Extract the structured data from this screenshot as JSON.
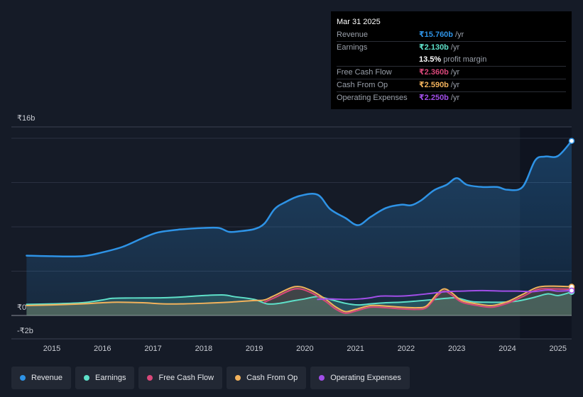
{
  "tooltip": {
    "date": "Mar 31 2025",
    "rows": [
      {
        "label": "Revenue",
        "value": "₹15.760b",
        "unit": "/yr",
        "color": "#2e93e6"
      },
      {
        "label": "Earnings",
        "value": "₹2.130b",
        "unit": "/yr",
        "color": "#5ee0c9"
      },
      {
        "label": "",
        "value": "13.5%",
        "unit": "profit margin",
        "color": "#ffffff"
      },
      {
        "label": "Free Cash Flow",
        "value": "₹2.360b",
        "unit": "/yr",
        "color": "#d9487a"
      },
      {
        "label": "Cash From Op",
        "value": "₹2.590b",
        "unit": "/yr",
        "color": "#f2b25c"
      },
      {
        "label": "Operating Expenses",
        "value": "₹2.250b",
        "unit": "/yr",
        "color": "#a14ee8"
      }
    ]
  },
  "legend": [
    {
      "label": "Revenue",
      "color": "#2e93e6"
    },
    {
      "label": "Earnings",
      "color": "#5ee0c9"
    },
    {
      "label": "Free Cash Flow",
      "color": "#d9487a"
    },
    {
      "label": "Cash From Op",
      "color": "#f2b25c"
    },
    {
      "label": "Operating Expenses",
      "color": "#a14ee8"
    }
  ],
  "chart_data": {
    "type": "area",
    "y_unit": "₹b",
    "ylim": [
      -2,
      16
    ],
    "y_tick_labels": [
      {
        "value": 16,
        "label": "₹16b"
      },
      {
        "value": 0,
        "label": "₹0"
      },
      {
        "value": -2,
        "label": "-₹2b"
      }
    ],
    "x_tick_labels": [
      "2015",
      "2016",
      "2017",
      "2018",
      "2019",
      "2020",
      "2021",
      "2022",
      "2023",
      "2024",
      "2025"
    ],
    "x_ticks": [
      2015,
      2016,
      2017,
      2018,
      2019,
      2020,
      2021,
      2022,
      2023,
      2024,
      2025
    ],
    "xlim": [
      2014.2,
      2025.27
    ],
    "grid": true,
    "highlight_from": 2024.25,
    "series": [
      {
        "name": "Revenue",
        "color": "#2e93e6",
        "fill": true,
        "points": [
          [
            2014.5,
            5.4
          ],
          [
            2015.0,
            5.35
          ],
          [
            2015.6,
            5.35
          ],
          [
            2016.0,
            5.7
          ],
          [
            2016.4,
            6.2
          ],
          [
            2016.8,
            7.0
          ],
          [
            2017.1,
            7.5
          ],
          [
            2017.5,
            7.75
          ],
          [
            2018.0,
            7.9
          ],
          [
            2018.3,
            7.9
          ],
          [
            2018.5,
            7.55
          ],
          [
            2018.7,
            7.6
          ],
          [
            2019.0,
            7.8
          ],
          [
            2019.2,
            8.3
          ],
          [
            2019.4,
            9.6
          ],
          [
            2019.6,
            10.2
          ],
          [
            2019.9,
            10.8
          ],
          [
            2020.25,
            10.9
          ],
          [
            2020.5,
            9.6
          ],
          [
            2020.8,
            8.8
          ],
          [
            2021.05,
            8.15
          ],
          [
            2021.3,
            8.9
          ],
          [
            2021.6,
            9.7
          ],
          [
            2021.9,
            10.0
          ],
          [
            2022.1,
            9.95
          ],
          [
            2022.3,
            10.4
          ],
          [
            2022.55,
            11.3
          ],
          [
            2022.8,
            11.8
          ],
          [
            2023.0,
            12.4
          ],
          [
            2023.2,
            11.8
          ],
          [
            2023.5,
            11.6
          ],
          [
            2023.8,
            11.6
          ],
          [
            2024.0,
            11.35
          ],
          [
            2024.3,
            11.6
          ],
          [
            2024.55,
            14.0
          ],
          [
            2024.75,
            14.35
          ],
          [
            2025.0,
            14.4
          ],
          [
            2025.27,
            15.76
          ]
        ]
      },
      {
        "name": "Earnings",
        "color": "#5ee0c9",
        "fill": true,
        "points": [
          [
            2014.5,
            1.0
          ],
          [
            2015.0,
            1.05
          ],
          [
            2015.6,
            1.15
          ],
          [
            2016.0,
            1.4
          ],
          [
            2016.2,
            1.55
          ],
          [
            2016.6,
            1.58
          ],
          [
            2017.2,
            1.6
          ],
          [
            2017.6,
            1.68
          ],
          [
            2018.0,
            1.8
          ],
          [
            2018.4,
            1.85
          ],
          [
            2018.6,
            1.7
          ],
          [
            2019.0,
            1.45
          ],
          [
            2019.25,
            1.05
          ],
          [
            2019.5,
            1.1
          ],
          [
            2019.8,
            1.35
          ],
          [
            2020.0,
            1.5
          ],
          [
            2020.25,
            1.7
          ],
          [
            2020.5,
            1.45
          ],
          [
            2020.8,
            1.1
          ],
          [
            2021.05,
            0.95
          ],
          [
            2021.3,
            1.05
          ],
          [
            2021.6,
            1.15
          ],
          [
            2021.9,
            1.2
          ],
          [
            2022.2,
            1.3
          ],
          [
            2022.5,
            1.42
          ],
          [
            2022.8,
            1.55
          ],
          [
            2023.0,
            1.58
          ],
          [
            2023.3,
            1.25
          ],
          [
            2023.6,
            1.2
          ],
          [
            2023.9,
            1.2
          ],
          [
            2024.2,
            1.3
          ],
          [
            2024.5,
            1.6
          ],
          [
            2024.8,
            1.95
          ],
          [
            2025.0,
            1.8
          ],
          [
            2025.27,
            2.13
          ]
        ]
      },
      {
        "name": "Free Cash Flow",
        "color": "#d9487a",
        "fill": false,
        "points": [
          [
            2019.2,
            1.2
          ],
          [
            2019.4,
            1.6
          ],
          [
            2019.8,
            2.4
          ],
          [
            2020.1,
            2.1
          ],
          [
            2020.4,
            1.3
          ],
          [
            2020.6,
            0.6
          ],
          [
            2020.8,
            0.2
          ],
          [
            2021.0,
            0.4
          ],
          [
            2021.3,
            0.75
          ],
          [
            2021.6,
            0.7
          ],
          [
            2021.9,
            0.6
          ],
          [
            2022.2,
            0.55
          ],
          [
            2022.4,
            0.7
          ],
          [
            2022.6,
            1.7
          ],
          [
            2022.75,
            2.2
          ],
          [
            2022.9,
            1.85
          ],
          [
            2023.1,
            1.2
          ],
          [
            2023.4,
            0.9
          ],
          [
            2023.7,
            0.75
          ],
          [
            2024.0,
            1.1
          ],
          [
            2024.3,
            1.7
          ],
          [
            2024.6,
            2.35
          ],
          [
            2024.9,
            2.4
          ],
          [
            2025.27,
            2.36
          ]
        ]
      },
      {
        "name": "Cash From Op",
        "color": "#f2b25c",
        "fill": true,
        "points": [
          [
            2014.5,
            0.9
          ],
          [
            2015.0,
            0.95
          ],
          [
            2015.6,
            1.05
          ],
          [
            2016.0,
            1.15
          ],
          [
            2016.3,
            1.2
          ],
          [
            2016.8,
            1.15
          ],
          [
            2017.2,
            1.05
          ],
          [
            2017.6,
            1.05
          ],
          [
            2018.0,
            1.1
          ],
          [
            2018.5,
            1.2
          ],
          [
            2019.0,
            1.35
          ],
          [
            2019.2,
            1.4
          ],
          [
            2019.4,
            1.8
          ],
          [
            2019.8,
            2.6
          ],
          [
            2020.1,
            2.3
          ],
          [
            2020.4,
            1.5
          ],
          [
            2020.6,
            0.8
          ],
          [
            2020.8,
            0.35
          ],
          [
            2021.0,
            0.55
          ],
          [
            2021.3,
            0.9
          ],
          [
            2021.6,
            0.85
          ],
          [
            2021.9,
            0.75
          ],
          [
            2022.2,
            0.7
          ],
          [
            2022.4,
            0.85
          ],
          [
            2022.6,
            1.9
          ],
          [
            2022.75,
            2.4
          ],
          [
            2022.9,
            2.05
          ],
          [
            2023.1,
            1.35
          ],
          [
            2023.4,
            1.05
          ],
          [
            2023.7,
            0.9
          ],
          [
            2024.0,
            1.25
          ],
          [
            2024.3,
            1.9
          ],
          [
            2024.6,
            2.55
          ],
          [
            2024.9,
            2.65
          ],
          [
            2025.27,
            2.59
          ]
        ]
      },
      {
        "name": "Operating Expenses",
        "color": "#a14ee8",
        "fill": false,
        "points": [
          [
            2020.25,
            1.45
          ],
          [
            2020.5,
            1.5
          ],
          [
            2020.8,
            1.45
          ],
          [
            2021.1,
            1.5
          ],
          [
            2021.3,
            1.6
          ],
          [
            2021.5,
            1.75
          ],
          [
            2021.9,
            1.75
          ],
          [
            2022.2,
            1.85
          ],
          [
            2022.5,
            2.0
          ],
          [
            2022.8,
            2.15
          ],
          [
            2023.1,
            2.2
          ],
          [
            2023.5,
            2.25
          ],
          [
            2023.9,
            2.2
          ],
          [
            2024.2,
            2.2
          ],
          [
            2024.5,
            2.15
          ],
          [
            2024.8,
            2.3
          ],
          [
            2025.0,
            2.2
          ],
          [
            2025.27,
            2.25
          ]
        ]
      }
    ]
  }
}
